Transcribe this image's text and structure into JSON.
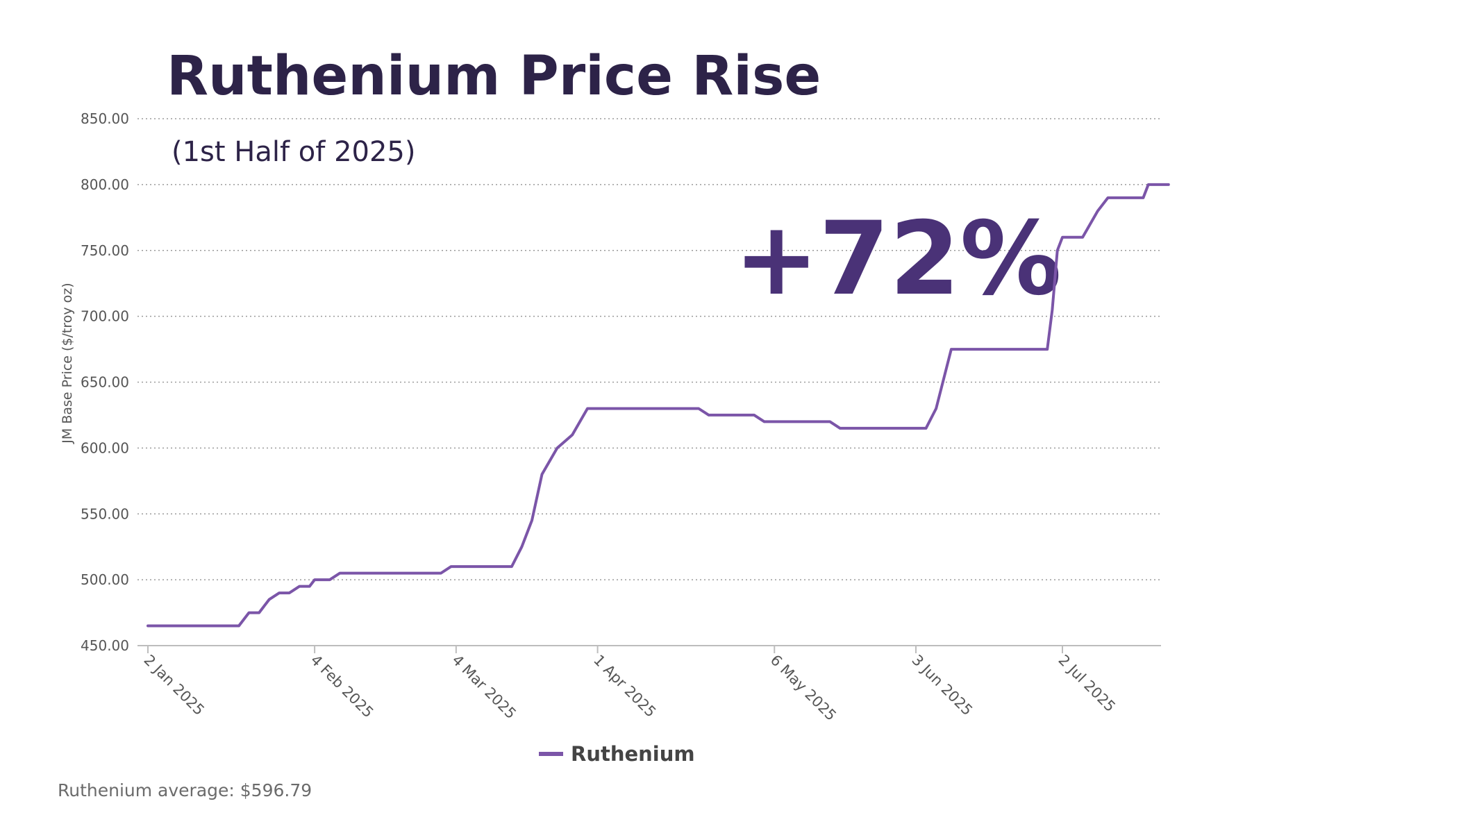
{
  "chart_data": {
    "type": "line",
    "title": "Ruthenium Price Rise",
    "subtitle": "(1st Half of 2025)",
    "annotation": "+72%",
    "ylabel": "JM Base Price ($/troy oz)",
    "xlabel": "",
    "ylim": [
      450,
      850
    ],
    "y_ticks": [
      "850.00",
      "800.00",
      "750.00",
      "700.00",
      "650.00",
      "600.00",
      "550.00",
      "500.00",
      "450.00"
    ],
    "x_tick_labels": [
      "2 Jan 2025",
      "4 Feb 2025",
      "4 Mar 2025",
      "1 Apr 2025",
      "6 May 2025",
      "3 Jun 2025",
      "2 Jul 2025"
    ],
    "x_tick_dates": [
      "2025-01-02",
      "2025-02-04",
      "2025-03-04",
      "2025-04-01",
      "2025-05-06",
      "2025-06-03",
      "2025-07-02"
    ],
    "grid": true,
    "legend_position": "bottom",
    "footer": "Ruthenium average: $596.79",
    "series": [
      {
        "name": "Ruthenium",
        "color": "#7b55a8",
        "x": [
          "2025-01-02",
          "2025-01-20",
          "2025-01-22",
          "2025-01-24",
          "2025-01-26",
          "2025-01-28",
          "2025-01-30",
          "2025-02-01",
          "2025-02-03",
          "2025-02-04",
          "2025-02-07",
          "2025-02-09",
          "2025-02-12",
          "2025-03-01",
          "2025-03-03",
          "2025-03-15",
          "2025-03-17",
          "2025-03-19",
          "2025-03-21",
          "2025-03-24",
          "2025-03-27",
          "2025-03-30",
          "2025-04-01",
          "2025-04-21",
          "2025-04-23",
          "2025-05-02",
          "2025-05-04",
          "2025-05-17",
          "2025-05-19",
          "2025-06-05",
          "2025-06-07",
          "2025-06-10",
          "2025-06-29",
          "2025-06-30",
          "2025-07-01",
          "2025-07-02",
          "2025-07-03",
          "2025-07-06",
          "2025-07-09",
          "2025-07-11",
          "2025-07-13",
          "2025-07-15",
          "2025-07-18",
          "2025-07-19",
          "2025-07-23"
        ],
        "values": [
          465,
          465,
          475,
          475,
          485,
          490,
          490,
          495,
          495,
          500,
          500,
          505,
          505,
          505,
          510,
          510,
          525,
          545,
          580,
          600,
          610,
          630,
          630,
          630,
          625,
          625,
          620,
          620,
          615,
          615,
          630,
          675,
          675,
          705,
          750,
          760,
          760,
          760,
          780,
          790,
          790,
          790,
          790,
          800,
          800
        ]
      }
    ]
  }
}
